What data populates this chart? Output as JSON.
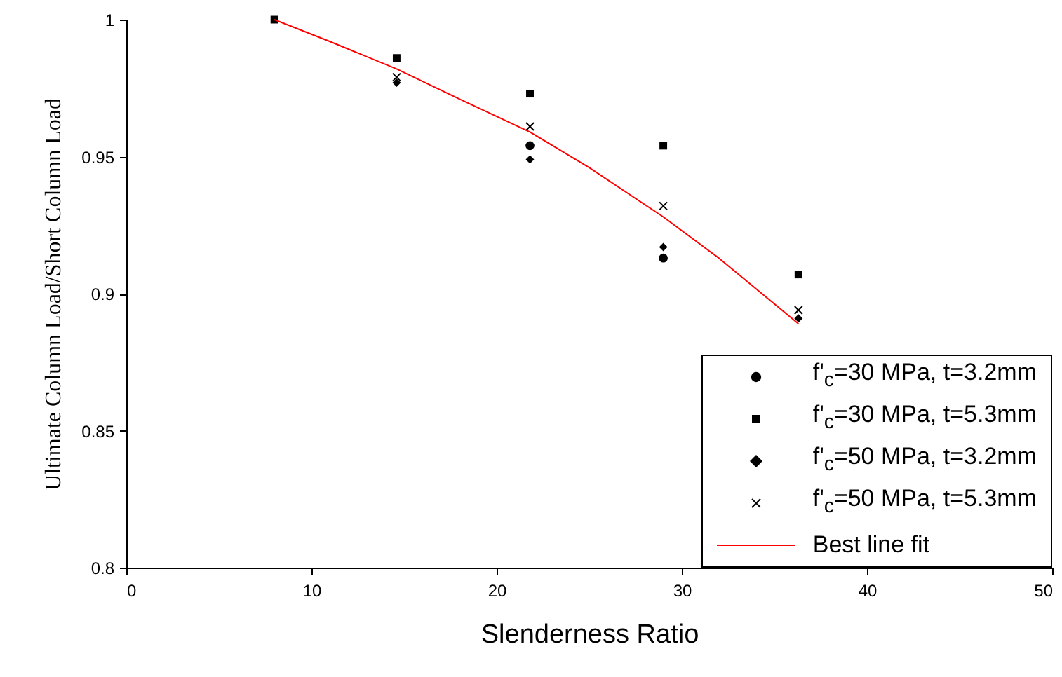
{
  "chart_data": {
    "type": "scatter",
    "xlabel": "Slenderness Ratio",
    "ylabel": "Ultimate Column Load/Short Column Load",
    "xlim": [
      0,
      50
    ],
    "xticks": [
      0,
      10,
      20,
      30,
      40,
      50
    ],
    "ylim": [
      0.8,
      1
    ],
    "yticks": [
      0.8,
      0.85,
      0.9,
      0.95,
      1
    ],
    "grid": false,
    "legend": "bottom right",
    "series": [
      {
        "name": "f'$_{c}$=30 MPa, t=3.2mm",
        "type": "scatter",
        "marker": "circle",
        "color": "#000000",
        "x": [
          21.8,
          29
        ],
        "values": [
          0.954,
          0.913
        ]
      },
      {
        "name": "f'$_{c}$=30 MPa, t=5.3mm",
        "type": "scatter",
        "marker": "square",
        "color": "#000000",
        "x": [
          8,
          14.6,
          21.8,
          29,
          36.3
        ],
        "values": [
          1,
          0.986,
          0.973,
          0.954,
          0.907
        ]
      },
      {
        "name": "f'$_{c}$=50 MPa, t=3.2mm",
        "type": "scatter",
        "marker": "diamond",
        "color": "#000000",
        "x": [
          14.6,
          21.8,
          29,
          36.3
        ],
        "values": [
          0.977,
          0.949,
          0.917,
          0.891
        ]
      },
      {
        "name": "f'$_{c}$=50 MPa, t=5.3mm",
        "type": "scatter",
        "marker": "cross",
        "color": "#000000",
        "x": [
          14.6,
          21.8,
          29,
          36.3
        ],
        "values": [
          0.979,
          0.961,
          0.932,
          0.894
        ]
      },
      {
        "name": "Best line fit",
        "type": "line",
        "marker": "none",
        "line_style": "solid",
        "color": "#ff0000",
        "x": [
          8,
          11,
          14.6,
          18,
          21.8,
          25,
          29,
          32,
          36.3
        ],
        "values": [
          1,
          0.992,
          0.982,
          0.971,
          0.959,
          0.946,
          0.928,
          0.913,
          0.889
        ]
      }
    ]
  }
}
